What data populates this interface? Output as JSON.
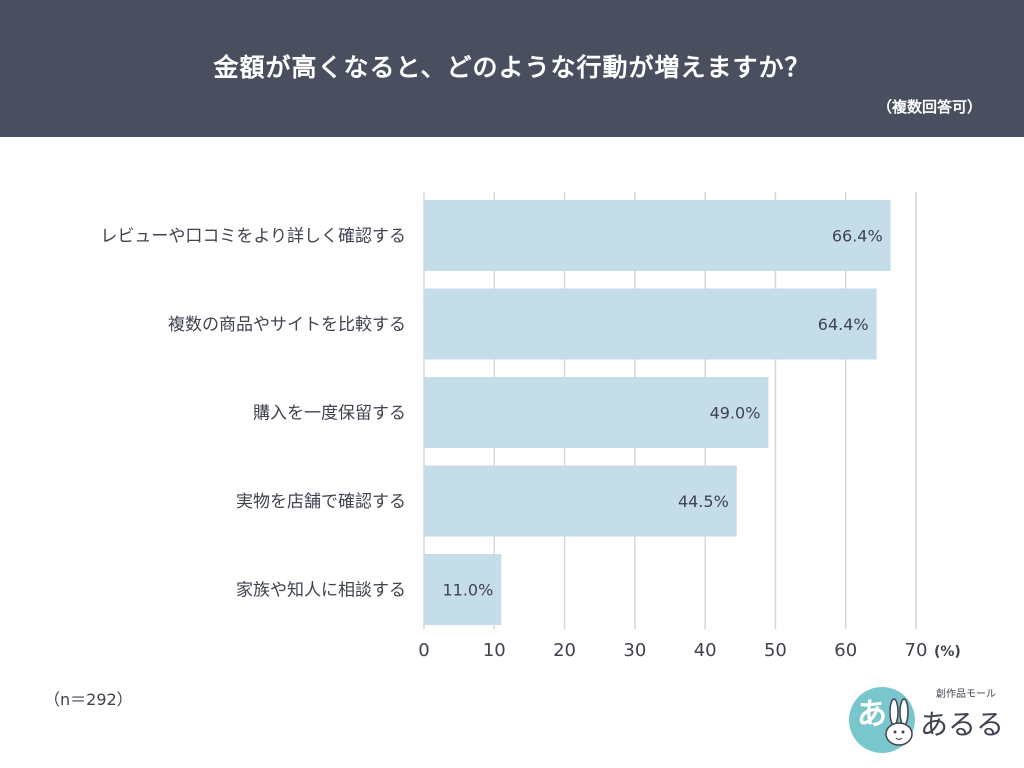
{
  "header": {
    "title": "金額が高くなると、どのような行動が増えますか？",
    "subtitle": "（複数回答可）"
  },
  "chart_data": {
    "type": "bar",
    "orientation": "horizontal",
    "categories": [
      "レビューや口コミをより詳しく確認する",
      "複数の商品やサイトを比較する",
      "購入を一度保留する",
      "実物を店舗で確認する",
      "家族や知人に相談する"
    ],
    "values": [
      66.4,
      64.4,
      49.0,
      44.5,
      11.0
    ],
    "value_labels": [
      "66.4%",
      "64.4%",
      "49.0%",
      "44.5%",
      "11.0%"
    ],
    "xlim": [
      0,
      70
    ],
    "xticks": [
      "0",
      "10",
      "20",
      "30",
      "40",
      "50",
      "60",
      "70"
    ],
    "xunit": "(%)",
    "grid": true,
    "bar_color": "#c5dde9"
  },
  "footer": {
    "sample_size": "（n＝292）"
  },
  "logo": {
    "brand_name": "あるる",
    "tagline": "創作品モール",
    "mark_text": "あ"
  },
  "colors": {
    "header_bg": "#4a4f5f",
    "text": "#3f4350",
    "grid": "#d4d6da",
    "logo_teal": "#79c7cc"
  }
}
